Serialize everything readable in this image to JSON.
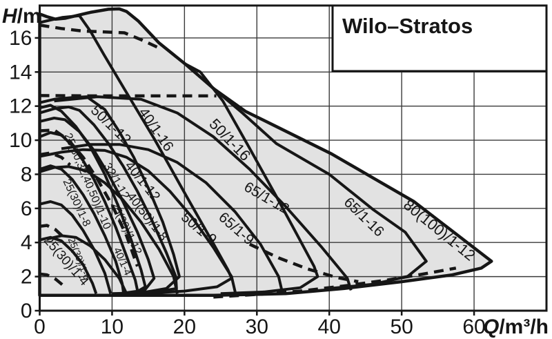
{
  "title": "Wilo–Stratos",
  "axes": {
    "y_sym": "H",
    "y_unit": "/m",
    "x_sym": "Q",
    "x_unit": "/m³/h",
    "x_ticks": [
      0,
      10,
      20,
      30,
      40,
      50,
      60
    ],
    "y_ticks": [
      0,
      2,
      4,
      6,
      8,
      10,
      12,
      14,
      16
    ]
  },
  "colors": {
    "background": "#ffffff",
    "field_fill": "#e2e2e2",
    "curve": "#161616",
    "grid": "#3a3a3a",
    "frame": "#161616"
  },
  "chart_data": {
    "type": "line",
    "title": "Wilo–Stratos",
    "xlabel": "Q/m³/h",
    "ylabel": "H/m",
    "xlim": [
      0,
      70
    ],
    "ylim": [
      0,
      17.9
    ],
    "grid": true,
    "legend_position": "none",
    "envelope": {
      "name": "family-operating-field",
      "points": [
        [
          0,
          17.4
        ],
        [
          1,
          17.25
        ],
        [
          2.2,
          17.1
        ],
        [
          3.5,
          17.15
        ],
        [
          5,
          17.3
        ],
        [
          7,
          17.5
        ],
        [
          9.5,
          17.68
        ],
        [
          11,
          17.7
        ],
        [
          12,
          17.55
        ],
        [
          13.6,
          17.0
        ],
        [
          16.5,
          15.7
        ],
        [
          20.3,
          14.4
        ],
        [
          24.1,
          13.0
        ],
        [
          28.4,
          11.7
        ],
        [
          32.7,
          10.8
        ],
        [
          40.3,
          9.2
        ],
        [
          46,
          7.8
        ],
        [
          51.7,
          6.4
        ],
        [
          56.9,
          4.7
        ],
        [
          62.4,
          2.9
        ],
        [
          61,
          2.5
        ],
        [
          57,
          2.1
        ],
        [
          50,
          1.7
        ],
        [
          42,
          1.3
        ],
        [
          34,
          1.0
        ],
        [
          24,
          0.9
        ],
        [
          12,
          0.9
        ],
        [
          0,
          0.9
        ]
      ]
    },
    "series": [
      {
        "name": "40/1-16",
        "dashed": false,
        "points": [
          [
            0,
            16.9
          ],
          [
            1.5,
            17.05
          ],
          [
            3.1,
            17.2
          ],
          [
            5.5,
            17.3
          ],
          [
            7,
            16.4
          ],
          [
            8.9,
            15.0
          ],
          [
            11.7,
            13.0
          ],
          [
            15.8,
            10.1
          ],
          [
            20.3,
            6.7
          ],
          [
            24.1,
            3.85
          ],
          [
            26,
            2.4
          ],
          [
            26.5,
            1.9
          ],
          [
            24.5,
            1.4
          ],
          [
            20,
            1.15
          ],
          [
            14,
            1.0
          ]
        ]
      },
      {
        "name": "50/1-16",
        "dashed": false,
        "points": [
          [
            16.5,
            15.7
          ],
          [
            20,
            14.5
          ],
          [
            22.2,
            14.0
          ],
          [
            25.3,
            12.3
          ],
          [
            28.9,
            9.6
          ],
          [
            32.7,
            6.7
          ],
          [
            35.5,
            4.5
          ],
          [
            37.9,
            2.6
          ],
          [
            38.4,
            2.0
          ],
          [
            36,
            1.35
          ],
          [
            31,
            1.1
          ],
          [
            25,
            1.0
          ]
        ]
      },
      {
        "name": "50/1-12",
        "dashed": false,
        "points": [
          [
            0,
            12.2
          ],
          [
            2,
            12.4
          ],
          [
            4.5,
            12.5
          ],
          [
            6.5,
            12.55
          ],
          [
            8,
            12.1
          ],
          [
            9,
            11.8
          ],
          [
            11,
            10.5
          ],
          [
            13,
            9.0
          ],
          [
            15,
            7.2
          ],
          [
            17,
            5.2
          ],
          [
            18.5,
            3.3
          ],
          [
            19.3,
            2.0
          ],
          [
            17.5,
            1.3
          ],
          [
            14,
            1.05
          ],
          [
            10,
            1.0
          ]
        ]
      },
      {
        "name": "40/1-12",
        "dashed": false,
        "points": [
          [
            0,
            11.6
          ],
          [
            2,
            11.85
          ],
          [
            4,
            11.95
          ],
          [
            5.5,
            11.75
          ],
          [
            7.5,
            10.9
          ],
          [
            9.5,
            9.8
          ],
          [
            11.5,
            8.5
          ],
          [
            13.5,
            7.0
          ],
          [
            15.5,
            5.3
          ],
          [
            17.5,
            3.4
          ],
          [
            18.8,
            2.0
          ],
          [
            18.9,
            1.3
          ],
          [
            16,
            1.1
          ]
        ]
      },
      {
        "name": "32/1-12",
        "dashed": false,
        "points": [
          [
            0,
            11.1
          ],
          [
            2,
            11.3
          ],
          [
            3.5,
            11.2
          ],
          [
            5.5,
            10.5
          ],
          [
            7.5,
            9.4
          ],
          [
            9.5,
            8.0
          ],
          [
            11.5,
            6.4
          ],
          [
            13.5,
            4.6
          ],
          [
            15,
            3.0
          ],
          [
            15.8,
            1.9
          ],
          [
            14.5,
            1.2
          ],
          [
            11,
            1.0
          ]
        ]
      },
      {
        "name": "25(30)/1-12",
        "dashed": false,
        "points": [
          [
            0,
            11.9
          ],
          [
            1.5,
            12.05
          ],
          [
            3,
            11.7
          ],
          [
            5,
            10.8
          ],
          [
            7,
            9.6
          ],
          [
            9,
            8.0
          ],
          [
            10.8,
            6.2
          ],
          [
            12.6,
            4.2
          ],
          [
            14,
            2.4
          ],
          [
            14.6,
            1.4
          ],
          [
            13,
            1.0
          ]
        ]
      },
      {
        "name": "25(30,32,40,50)/1-10",
        "dashed": false,
        "points": [
          [
            0,
            10.2
          ],
          [
            1.5,
            10.45
          ],
          [
            3,
            10.3
          ],
          [
            4.5,
            9.7
          ],
          [
            6,
            8.8
          ],
          [
            7.5,
            7.7
          ],
          [
            9,
            6.4
          ],
          [
            10.5,
            4.9
          ],
          [
            12,
            3.2
          ],
          [
            13.2,
            1.8
          ],
          [
            13.6,
            1.0
          ]
        ]
      },
      {
        "name": "25(30)/1-8",
        "dashed": false,
        "points": [
          [
            0,
            8.3
          ],
          [
            1.5,
            8.5
          ],
          [
            3,
            8.3
          ],
          [
            4.5,
            7.7
          ],
          [
            6,
            6.8
          ],
          [
            7.5,
            5.7
          ],
          [
            9,
            4.4
          ],
          [
            10.5,
            2.9
          ],
          [
            11.4,
            1.6
          ],
          [
            11.6,
            1.0
          ]
        ]
      },
      {
        "name": "40(50)/1-8",
        "dashed": false,
        "points": [
          [
            0,
            8.15
          ],
          [
            2,
            8.4
          ],
          [
            4,
            8.45
          ],
          [
            6.5,
            8.2
          ],
          [
            9,
            7.5
          ],
          [
            11.5,
            6.5
          ],
          [
            14,
            5.2
          ],
          [
            16.5,
            3.6
          ],
          [
            18.5,
            2.0
          ],
          [
            19,
            1.0
          ]
        ]
      },
      {
        "name": "25(30)/1-6",
        "dashed": false,
        "points": [
          [
            0,
            6.25
          ],
          [
            1.5,
            6.4
          ],
          [
            3,
            6.2
          ],
          [
            4.5,
            5.6
          ],
          [
            6,
            4.7
          ],
          [
            7.5,
            3.6
          ],
          [
            9,
            2.2
          ],
          [
            9.8,
            1.0
          ]
        ]
      },
      {
        "name": "25(30)/1-4",
        "dashed": false,
        "points": [
          [
            0,
            4.15
          ],
          [
            1.5,
            4.3
          ],
          [
            3,
            4.1
          ],
          [
            4.5,
            3.5
          ],
          [
            6,
            2.7
          ],
          [
            7.3,
            1.6
          ],
          [
            7.8,
            1.0
          ]
        ]
      },
      {
        "name": "40/1-4",
        "dashed": false,
        "points": [
          [
            1,
            4.2
          ],
          [
            3,
            4.4
          ],
          [
            5,
            4.3
          ],
          [
            7,
            3.8
          ],
          [
            9,
            3.0
          ],
          [
            11,
            1.9
          ],
          [
            12,
            1.0
          ]
        ]
      },
      {
        "name": "50/1-9",
        "dashed": false,
        "points": [
          [
            0,
            9.05
          ],
          [
            3,
            9.3
          ],
          [
            6,
            9.45
          ],
          [
            9,
            9.4
          ],
          [
            12,
            9.0
          ],
          [
            15,
            8.2
          ],
          [
            18,
            7.0
          ],
          [
            21,
            5.5
          ],
          [
            24,
            3.7
          ],
          [
            26.5,
            2.0
          ],
          [
            27,
            1.1
          ]
        ]
      },
      {
        "name": "65/1-9",
        "dashed": false,
        "points": [
          [
            3,
            9.5
          ],
          [
            7,
            9.75
          ],
          [
            11,
            9.75
          ],
          [
            15,
            9.45
          ],
          [
            19,
            8.7
          ],
          [
            23,
            7.5
          ],
          [
            27,
            5.8
          ],
          [
            30.5,
            3.9
          ],
          [
            33,
            2.0
          ],
          [
            33.5,
            1.1
          ]
        ]
      },
      {
        "name": "65/1-12",
        "dashed": false,
        "points": [
          [
            2,
            12.3
          ],
          [
            8,
            12.55
          ],
          [
            14,
            12.4
          ],
          [
            19,
            11.6
          ],
          [
            24,
            10.2
          ],
          [
            29,
            8.3
          ],
          [
            34,
            6.1
          ],
          [
            39,
            3.7
          ],
          [
            42.5,
            1.9
          ],
          [
            43,
            1.2
          ]
        ]
      },
      {
        "name": "65/1-16",
        "dashed": false,
        "points": [
          [
            20,
            14.5
          ],
          [
            24.1,
            13.0
          ],
          [
            28,
            11.6
          ],
          [
            32.7,
            9.8
          ],
          [
            40,
            8.0
          ],
          [
            46,
            5.95
          ],
          [
            50.5,
            4.6
          ],
          [
            53.4,
            2.9
          ],
          [
            50.8,
            2.0
          ],
          [
            46,
            1.55
          ],
          [
            40,
            1.3
          ]
        ]
      },
      {
        "name": "max-limit-16m-dashed",
        "dashed": true,
        "points": [
          [
            0,
            16.75
          ],
          [
            3,
            16.55
          ],
          [
            6,
            16.4
          ],
          [
            9,
            16.35
          ],
          [
            11.7,
            16.3
          ],
          [
            14,
            15.9
          ],
          [
            16.8,
            15.35
          ]
        ]
      },
      {
        "name": "max-limit-12.6m-dashed",
        "dashed": true,
        "points": [
          [
            0,
            12.62
          ],
          [
            8,
            12.6
          ],
          [
            16,
            12.6
          ],
          [
            24.4,
            12.6
          ]
        ]
      },
      {
        "name": "dashed-1-10-flank",
        "dashed": true,
        "points": [
          [
            0,
            10.55
          ],
          [
            2,
            10.6
          ],
          [
            4,
            10.0
          ],
          [
            6,
            9.0
          ],
          [
            8,
            7.7
          ],
          [
            10,
            6.2
          ],
          [
            12,
            4.4
          ],
          [
            13.5,
            2.6
          ]
        ]
      },
      {
        "name": "dashed-stub-9m",
        "dashed": true,
        "points": [
          [
            0,
            9.15
          ],
          [
            1.5,
            9.25
          ],
          [
            3,
            9.0
          ],
          [
            4.2,
            8.55
          ]
        ]
      },
      {
        "name": "dashed-stub-5m",
        "dashed": true,
        "points": [
          [
            0,
            4.95
          ],
          [
            1,
            5.0
          ],
          [
            2.2,
            4.75
          ],
          [
            3.2,
            4.35
          ]
        ]
      },
      {
        "name": "dashed-stub-2m",
        "dashed": true,
        "points": [
          [
            0,
            2.15
          ],
          [
            1,
            2.1
          ],
          [
            2.2,
            1.85
          ],
          [
            3.2,
            1.5
          ]
        ]
      },
      {
        "name": "dashed-right-flank",
        "dashed": true,
        "points": [
          [
            29,
            3.9
          ],
          [
            33,
            3.1
          ],
          [
            37,
            2.45
          ],
          [
            41,
            1.95
          ],
          [
            44,
            1.7
          ]
        ]
      },
      {
        "name": "dashed-bottom-min",
        "dashed": true,
        "points": [
          [
            24,
            0.8
          ],
          [
            30,
            0.95
          ],
          [
            36,
            1.15
          ],
          [
            42,
            1.45
          ],
          [
            48,
            1.8
          ],
          [
            53,
            2.15
          ],
          [
            57.5,
            2.5
          ]
        ]
      }
    ],
    "curve_labels": [
      {
        "text": "50/1-12",
        "q": 6.95,
        "h": 11.7,
        "rot": 44,
        "size": 21
      },
      {
        "text": "40/1-16",
        "q": 13.6,
        "h": 11.65,
        "rot": 55,
        "size": 21
      },
      {
        "text": "50/1-16",
        "q": 23.3,
        "h": 10.9,
        "rot": 46,
        "size": 22
      },
      {
        "text": "65/1-12",
        "q": 28.1,
        "h": 7.1,
        "rot": 30,
        "size": 21
      },
      {
        "text": "65/1-16",
        "q": 41.9,
        "h": 6.3,
        "rot": 44,
        "size": 21
      },
      {
        "text": "80(100)/1-12",
        "q": 50.1,
        "h": 6.1,
        "rot": 39,
        "size": 22
      },
      {
        "text": "65/1-9",
        "q": 24.6,
        "h": 5.4,
        "rot": 41,
        "size": 21
      },
      {
        "text": "50/1-9",
        "q": 19.4,
        "h": 5.4,
        "rot": 40,
        "size": 21
      },
      {
        "text": "40/1-12",
        "q": 11.7,
        "h": 8.5,
        "rot": 51,
        "size": 20
      },
      {
        "text": "32/1-12",
        "q": 8.8,
        "h": 8.5,
        "rot": 60,
        "size": 17
      },
      {
        "text": "40(50)/1-8",
        "q": 12.0,
        "h": 6.7,
        "rot": 52,
        "size": 18
      },
      {
        "text": "25(30,32,40,50)/1-10",
        "q": 3.4,
        "h": 10.3,
        "rot": 67,
        "size": 16
      },
      {
        "text": "25(30)/1-8",
        "q": 3.2,
        "h": 7.6,
        "rot": 65,
        "size": 16
      },
      {
        "text": "25(30)/1-12",
        "q": 9.8,
        "h": 6.25,
        "rot": 64,
        "size": 16
      },
      {
        "text": "25(30)/1-6",
        "q": 3.9,
        "h": 4.2,
        "rot": 68,
        "size": 14
      },
      {
        "text": "25(30)/1-4",
        "q": 0.5,
        "h": 4.1,
        "rot": 49,
        "size": 19
      },
      {
        "text": "40/1-4",
        "q": 10.2,
        "h": 3.6,
        "rot": 66,
        "size": 15
      }
    ]
  }
}
